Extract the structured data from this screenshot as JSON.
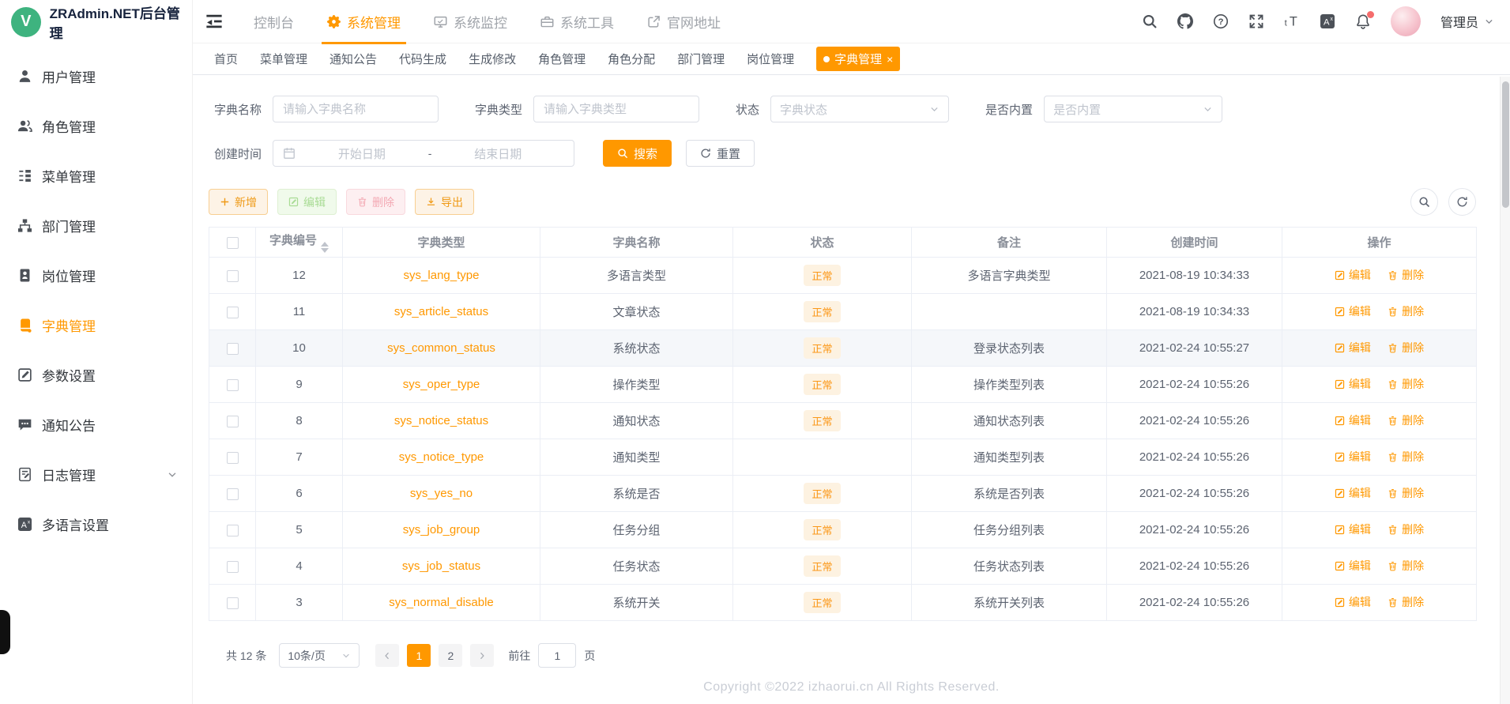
{
  "app": {
    "title": "ZRAdmin.NET后台管理",
    "logo_letter": "V"
  },
  "colors": {
    "primary": "#ff9800",
    "badge_bg": "#fdf2e1",
    "notification_dot": "#f56c6c"
  },
  "topnav": {
    "items": [
      {
        "label": "控制台",
        "icon": "",
        "active": false
      },
      {
        "label": "系统管理",
        "icon": "gear",
        "active": true
      },
      {
        "label": "系统监控",
        "icon": "monitor",
        "active": false
      },
      {
        "label": "系统工具",
        "icon": "toolbox",
        "active": false
      },
      {
        "label": "官网地址",
        "icon": "external-link",
        "active": false
      }
    ],
    "user_name": "管理员"
  },
  "sidebar": {
    "items": [
      {
        "label": "用户管理",
        "icon": "user",
        "active": false,
        "expandable": false
      },
      {
        "label": "角色管理",
        "icon": "role-users",
        "active": false,
        "expandable": false
      },
      {
        "label": "菜单管理",
        "icon": "menu-tree",
        "active": false,
        "expandable": false
      },
      {
        "label": "部门管理",
        "icon": "dept-org",
        "active": false,
        "expandable": false
      },
      {
        "label": "岗位管理",
        "icon": "post-badge",
        "active": false,
        "expandable": false
      },
      {
        "label": "字典管理",
        "icon": "dict-book",
        "active": true,
        "expandable": false
      },
      {
        "label": "参数设置",
        "icon": "param-edit",
        "active": false,
        "expandable": false
      },
      {
        "label": "通知公告",
        "icon": "notice-chat",
        "active": false,
        "expandable": false
      },
      {
        "label": "日志管理",
        "icon": "log-edit",
        "active": false,
        "expandable": true
      },
      {
        "label": "多语言设置",
        "icon": "lang-translate",
        "active": false,
        "expandable": false
      }
    ]
  },
  "tabs": {
    "items": [
      {
        "label": "首页",
        "active": false
      },
      {
        "label": "菜单管理",
        "active": false
      },
      {
        "label": "通知公告",
        "active": false
      },
      {
        "label": "代码生成",
        "active": false
      },
      {
        "label": "生成修改",
        "active": false
      },
      {
        "label": "角色管理",
        "active": false
      },
      {
        "label": "角色分配",
        "active": false
      },
      {
        "label": "部门管理",
        "active": false
      },
      {
        "label": "岗位管理",
        "active": false
      },
      {
        "label": "字典管理",
        "active": true
      }
    ]
  },
  "search": {
    "dict_name_label": "字典名称",
    "dict_name_placeholder": "请输入字典名称",
    "dict_type_label": "字典类型",
    "dict_type_placeholder": "请输入字典类型",
    "status_label": "状态",
    "status_placeholder": "字典状态",
    "builtin_label": "是否内置",
    "builtin_placeholder": "是否内置",
    "created_label": "创建时间",
    "date_start_placeholder": "开始日期",
    "date_separator": "-",
    "date_end_placeholder": "结束日期",
    "search_label": "搜索",
    "reset_label": "重置"
  },
  "toolbar": {
    "add_label": "新增",
    "edit_label": "编辑",
    "delete_label": "删除",
    "export_label": "导出"
  },
  "table": {
    "headers": [
      "字典编号",
      "字典类型",
      "字典名称",
      "状态",
      "备注",
      "创建时间",
      "操作"
    ],
    "edit_label": "编辑",
    "delete_label": "删除",
    "hover_row_index": 2,
    "rows": [
      {
        "id": "12",
        "type": "sys_lang_type",
        "name": "多语言类型",
        "status": "正常",
        "remark": "多语言字典类型",
        "created": "2021-08-19 10:34:33"
      },
      {
        "id": "11",
        "type": "sys_article_status",
        "name": "文章状态",
        "status": "正常",
        "remark": "",
        "created": "2021-08-19 10:34:33"
      },
      {
        "id": "10",
        "type": "sys_common_status",
        "name": "系统状态",
        "status": "正常",
        "remark": "登录状态列表",
        "created": "2021-02-24 10:55:27"
      },
      {
        "id": "9",
        "type": "sys_oper_type",
        "name": "操作类型",
        "status": "正常",
        "remark": "操作类型列表",
        "created": "2021-02-24 10:55:26"
      },
      {
        "id": "8",
        "type": "sys_notice_status",
        "name": "通知状态",
        "status": "正常",
        "remark": "通知状态列表",
        "created": "2021-02-24 10:55:26"
      },
      {
        "id": "7",
        "type": "sys_notice_type",
        "name": "通知类型",
        "status": "",
        "remark": "通知类型列表",
        "created": "2021-02-24 10:55:26"
      },
      {
        "id": "6",
        "type": "sys_yes_no",
        "name": "系统是否",
        "status": "正常",
        "remark": "系统是否列表",
        "created": "2021-02-24 10:55:26"
      },
      {
        "id": "5",
        "type": "sys_job_group",
        "name": "任务分组",
        "status": "正常",
        "remark": "任务分组列表",
        "created": "2021-02-24 10:55:26"
      },
      {
        "id": "4",
        "type": "sys_job_status",
        "name": "任务状态",
        "status": "正常",
        "remark": "任务状态列表",
        "created": "2021-02-24 10:55:26"
      },
      {
        "id": "3",
        "type": "sys_normal_disable",
        "name": "系统开关",
        "status": "正常",
        "remark": "系统开关列表",
        "created": "2021-02-24 10:55:26"
      }
    ]
  },
  "pagination": {
    "total_text": "共 12 条",
    "page_size": "10条/页",
    "pages": [
      {
        "label": "1"
      },
      {
        "label": "2"
      }
    ],
    "active_page": "1",
    "goto_label": "前往",
    "goto_value": "1",
    "goto_suffix": "页"
  },
  "footer": {
    "copyright": "Copyright ©2022 izhaorui.cn All Rights Reserved."
  }
}
